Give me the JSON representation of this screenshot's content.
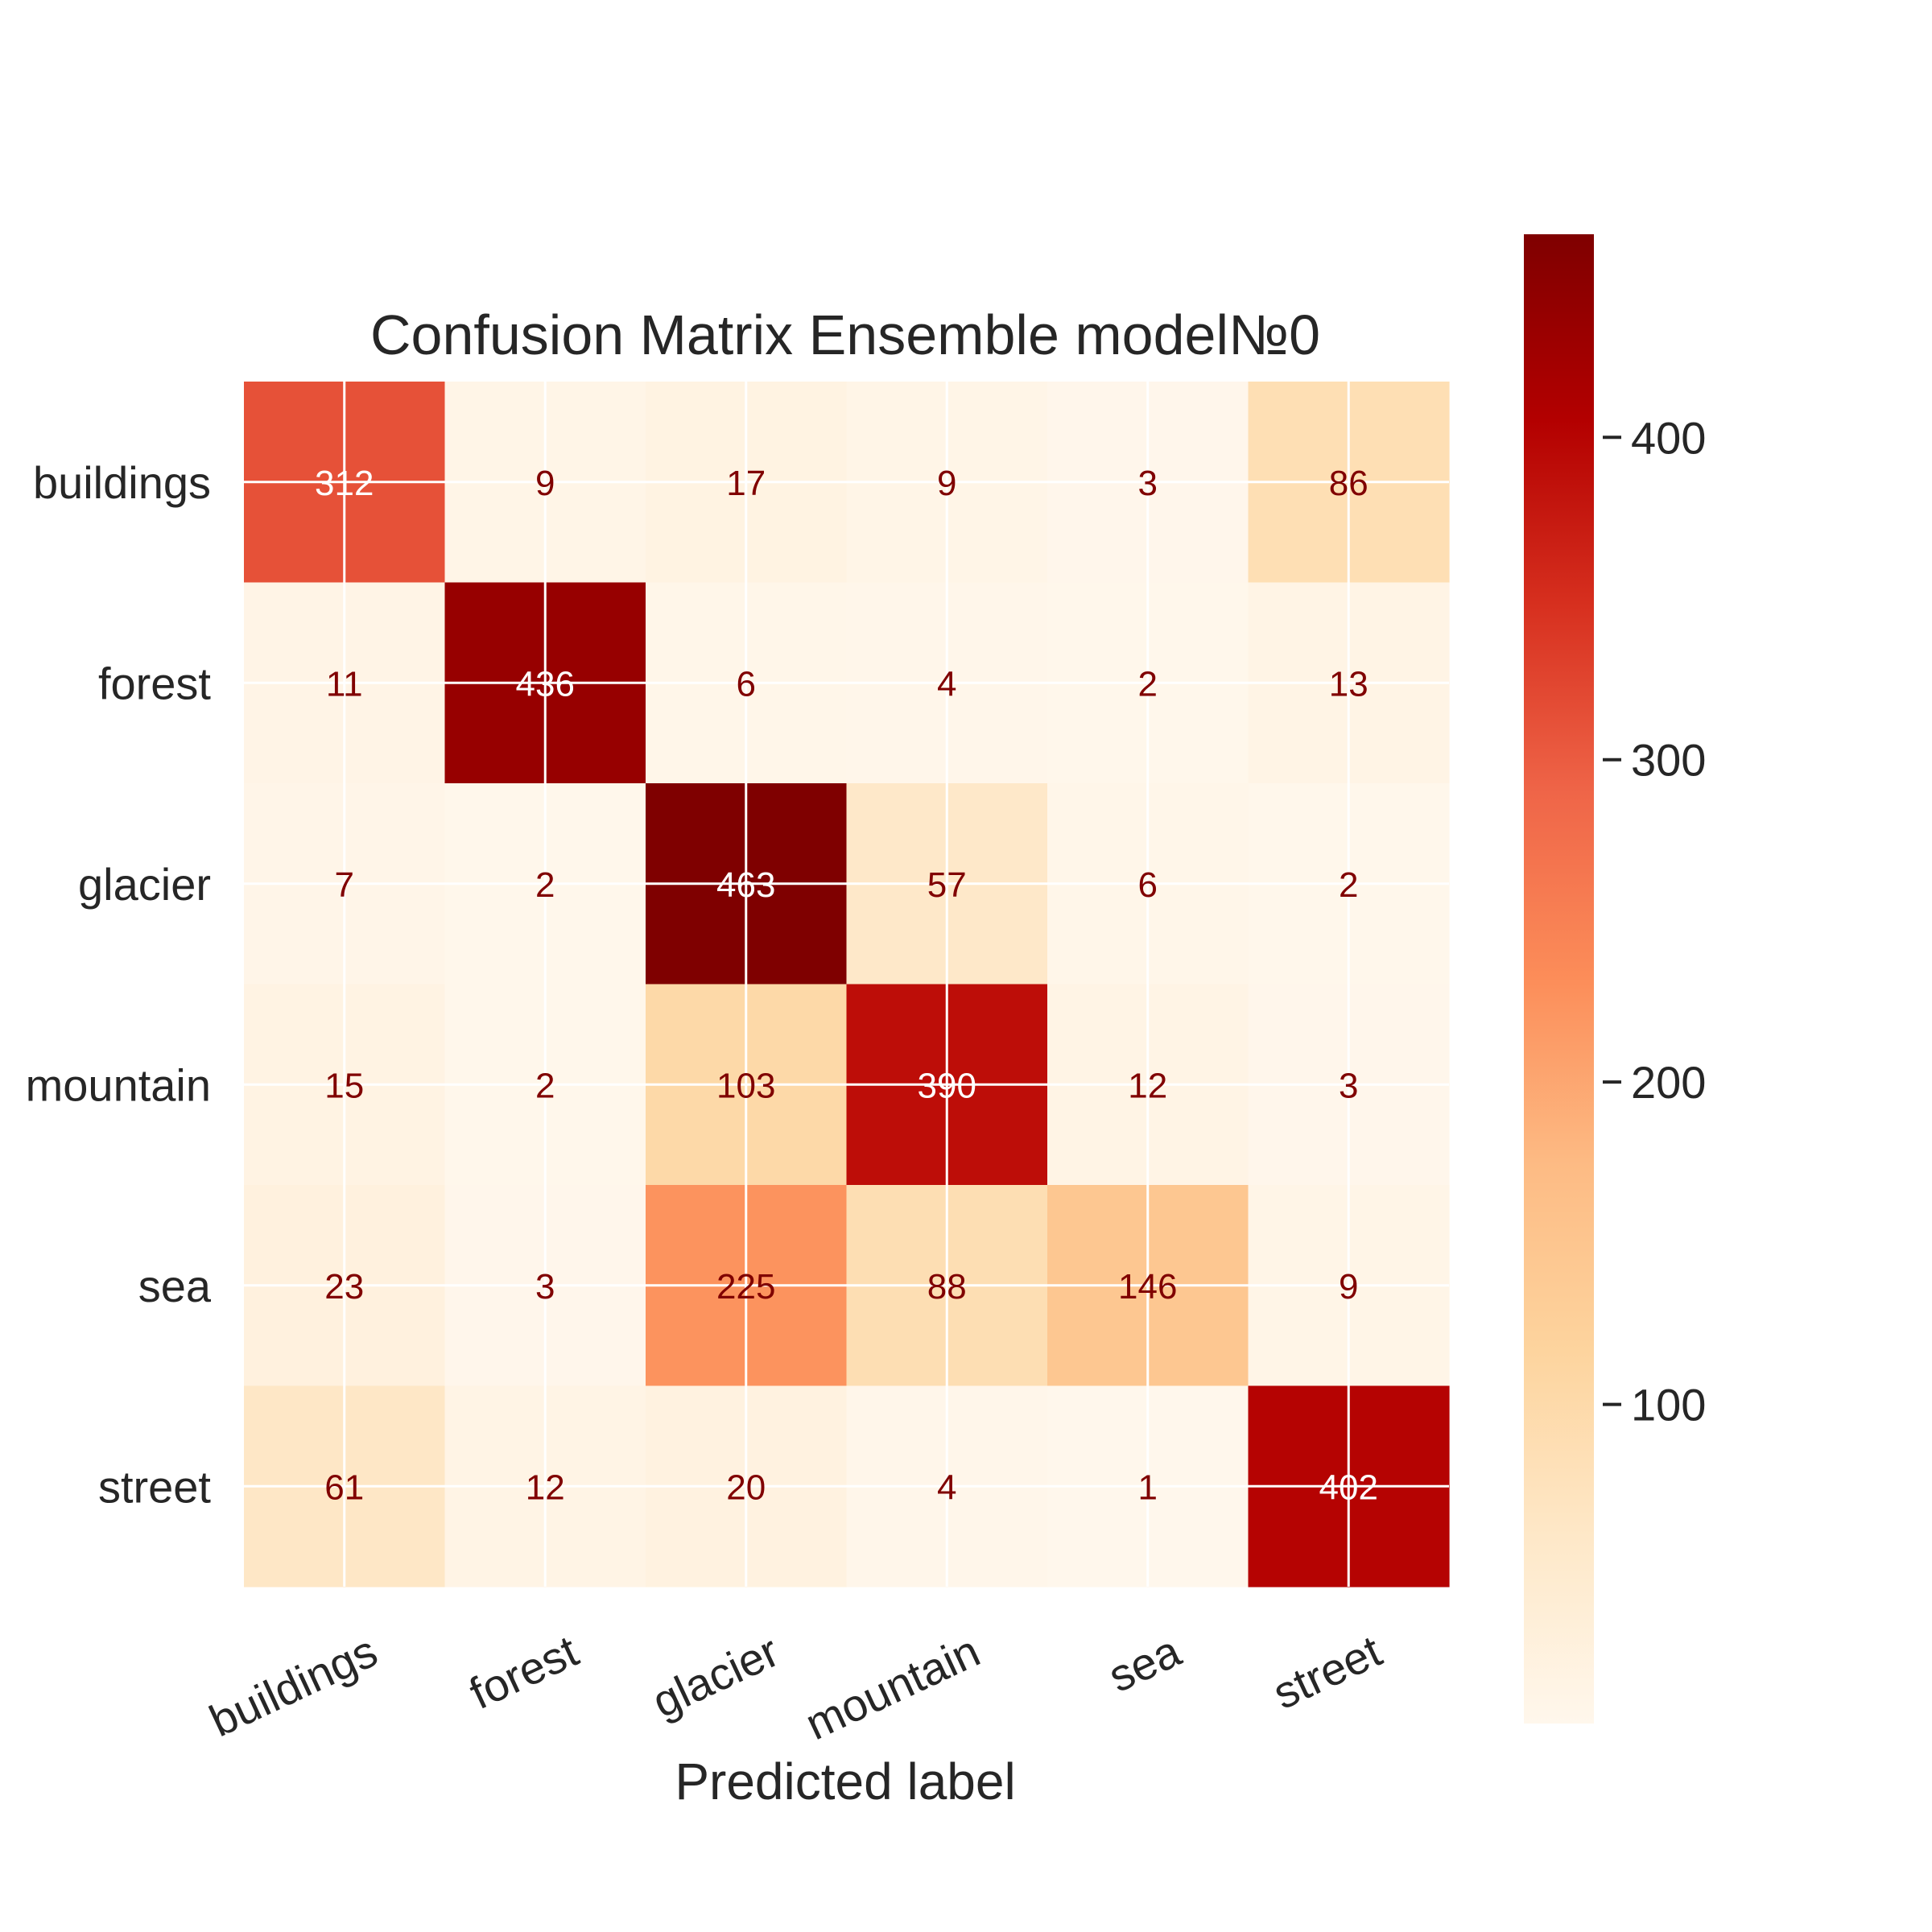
{
  "chart_data": {
    "type": "heatmap",
    "title": "Confusion Matrix Ensemble model№0",
    "xlabel": "Predicted label",
    "ylabel": "",
    "x_categories": [
      "buildings",
      "forest",
      "glacier",
      "mountain",
      "sea",
      "street"
    ],
    "y_categories": [
      "buildings",
      "forest",
      "glacier",
      "mountain",
      "sea",
      "street"
    ],
    "values": [
      [
        312,
        9,
        17,
        9,
        3,
        86
      ],
      [
        11,
        436,
        6,
        4,
        2,
        13
      ],
      [
        7,
        2,
        463,
        57,
        6,
        2
      ],
      [
        15,
        2,
        103,
        390,
        12,
        3
      ],
      [
        23,
        3,
        225,
        88,
        146,
        9
      ],
      [
        61,
        12,
        20,
        4,
        1,
        402
      ]
    ],
    "colormap": "OrRd",
    "color_range": [
      1,
      463
    ],
    "colorbar_ticks": [
      100,
      200,
      300,
      400
    ],
    "colorbar_tick_labels": [
      "100",
      "200",
      "300",
      "400"
    ],
    "grid": true,
    "text_color_light": "#ffffff",
    "text_color_dark": "#800000"
  }
}
